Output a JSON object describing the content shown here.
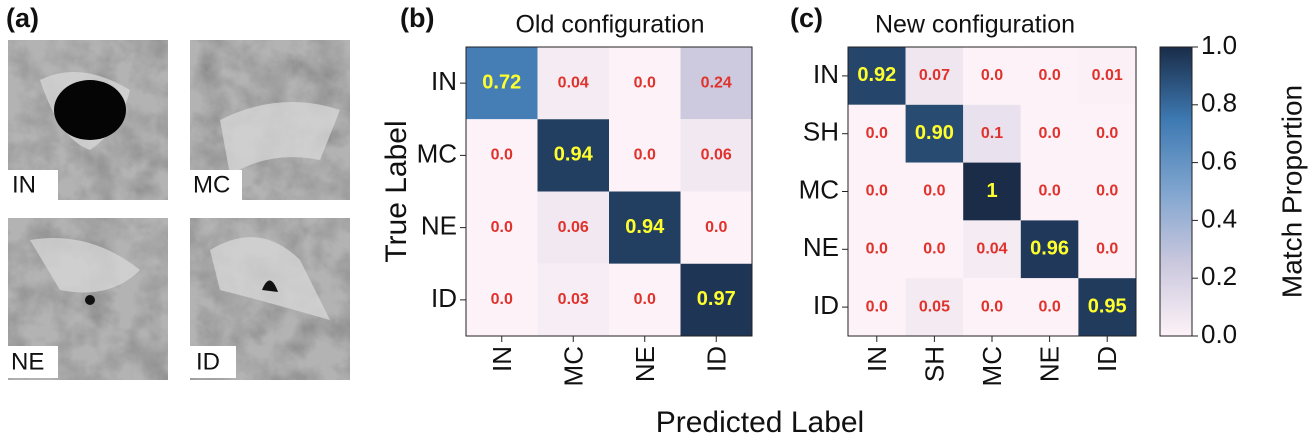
{
  "image_panel": {
    "panel_label": "(a)",
    "tiles": [
      "IN",
      "MC",
      "NE",
      "ID"
    ]
  },
  "figure": {
    "xlabel": "Predicted Label",
    "colorbar": {
      "label": "Match Proportion",
      "ylim": [
        0,
        1
      ],
      "yticks": [
        {
          "value": 0,
          "label": "0.0"
        },
        0.2,
        0.4,
        0.6,
        0.8,
        {
          "value": 1,
          "label": "1.0"
        }
      ],
      "colors": [
        "#fdf2f7",
        "#cbc8de",
        "#80a5cf",
        "#3d79b2",
        "#1a2c48"
      ]
    }
  },
  "chart_data": [
    {
      "type": "heatmap",
      "panel_label": "(b)",
      "title": "Old configuration",
      "ylabel": "True Label",
      "x_categories": [
        "IN",
        "MC",
        "NE",
        "ID"
      ],
      "y_categories": [
        "IN",
        "MC",
        "NE",
        "ID"
      ],
      "values": [
        [
          0.72,
          0.04,
          0,
          0.24
        ],
        [
          0,
          0.94,
          0,
          0.06
        ],
        [
          0,
          0.06,
          0.94,
          0
        ],
        [
          0,
          0.03,
          0,
          0.97
        ]
      ],
      "value_labels": [
        [
          "0.72",
          "0.04",
          "0.0",
          "0.24"
        ],
        [
          "0.0",
          "0.94",
          "0.0",
          "0.06"
        ],
        [
          "0.0",
          "0.06",
          "0.94",
          "0.0"
        ],
        [
          "0.0",
          "0.03",
          "0.0",
          "0.97"
        ]
      ]
    },
    {
      "type": "heatmap",
      "panel_label": "(c)",
      "title": "New configuration",
      "x_categories": [
        "IN",
        "SH",
        "MC",
        "NE",
        "ID"
      ],
      "y_categories": [
        "IN",
        "SH",
        "MC",
        "NE",
        "ID"
      ],
      "values": [
        [
          0.92,
          0.07,
          0,
          0,
          0.01
        ],
        [
          0,
          0.9,
          0.1,
          0,
          0
        ],
        [
          0,
          0,
          1,
          0,
          0
        ],
        [
          0,
          0,
          0.04,
          0.96,
          0
        ],
        [
          0,
          0.05,
          0,
          0,
          0.95
        ]
      ],
      "value_labels": [
        [
          "0.92",
          "0.07",
          "0.0",
          "0.0",
          "0.01"
        ],
        [
          "0.0",
          "0.90",
          "0.1",
          "0.0",
          "0.0"
        ],
        [
          "0.0",
          "0.0",
          "1",
          "0.0",
          "0.0"
        ],
        [
          "0.0",
          "0.0",
          "0.04",
          "0.96",
          "0.0"
        ],
        [
          "0.0",
          "0.05",
          "0.0",
          "0.0",
          "0.95"
        ]
      ]
    }
  ]
}
